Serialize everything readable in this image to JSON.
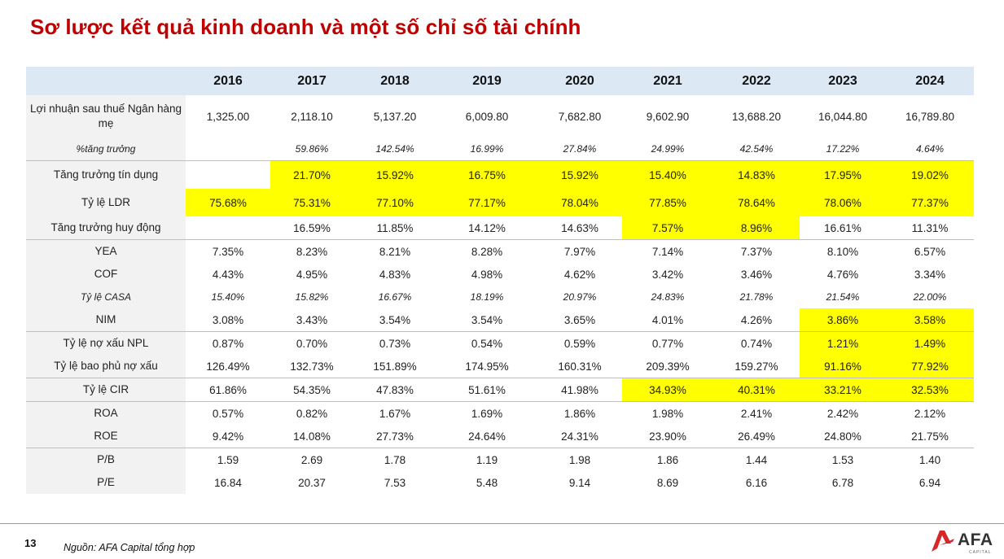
{
  "title": "Sơ lược kết quả kinh doanh và một số chỉ số tài chính",
  "years": [
    "2016",
    "2017",
    "2018",
    "2019",
    "2020",
    "2021",
    "2022",
    "2023",
    "2024"
  ],
  "rows": [
    {
      "label": "Lợi nhuận sau thuế Ngân hàng mẹ",
      "values": [
        "1,325.00",
        "2,118.10",
        "5,137.20",
        "6,009.80",
        "7,682.80",
        "9,602.90",
        "13,688.20",
        "16,044.80",
        "16,789.80"
      ]
    },
    {
      "label": "%tăng trưởng",
      "values": [
        "",
        "59.86%",
        "142.54%",
        "16.99%",
        "27.84%",
        "24.99%",
        "42.54%",
        "17.22%",
        "4.64%"
      ]
    },
    {
      "label": "Tăng trưởng tín dụng",
      "values": [
        "",
        "21.70%",
        "15.92%",
        "16.75%",
        "15.92%",
        "15.40%",
        "14.83%",
        "17.95%",
        "19.02%"
      ]
    },
    {
      "label": "Tỷ lệ LDR",
      "values": [
        "75.68%",
        "75.31%",
        "77.10%",
        "77.17%",
        "78.04%",
        "77.85%",
        "78.64%",
        "78.06%",
        "77.37%"
      ]
    },
    {
      "label": "Tăng trưởng huy động",
      "values": [
        "",
        "16.59%",
        "11.85%",
        "14.12%",
        "14.63%",
        "7.57%",
        "8.96%",
        "16.61%",
        "11.31%"
      ]
    },
    {
      "label": "YEA",
      "values": [
        "7.35%",
        "8.23%",
        "8.21%",
        "8.28%",
        "7.97%",
        "7.14%",
        "7.37%",
        "8.10%",
        "6.57%"
      ]
    },
    {
      "label": "COF",
      "values": [
        "4.43%",
        "4.95%",
        "4.83%",
        "4.98%",
        "4.62%",
        "3.42%",
        "3.46%",
        "4.76%",
        "3.34%"
      ]
    },
    {
      "label": "Tỷ lệ CASA",
      "values": [
        "15.40%",
        "15.82%",
        "16.67%",
        "18.19%",
        "20.97%",
        "24.83%",
        "21.78%",
        "21.54%",
        "22.00%"
      ]
    },
    {
      "label": "NIM",
      "values": [
        "3.08%",
        "3.43%",
        "3.54%",
        "3.54%",
        "3.65%",
        "4.01%",
        "4.26%",
        "3.86%",
        "3.58%"
      ]
    },
    {
      "label": "Tỷ lệ nợ xấu NPL",
      "values": [
        "0.87%",
        "0.70%",
        "0.73%",
        "0.54%",
        "0.59%",
        "0.77%",
        "0.74%",
        "1.21%",
        "1.49%"
      ]
    },
    {
      "label": "Tỷ lệ bao phủ nợ xấu",
      "values": [
        "126.49%",
        "132.73%",
        "151.89%",
        "174.95%",
        "160.31%",
        "209.39%",
        "159.27%",
        "91.16%",
        "77.92%"
      ]
    },
    {
      "label": "Tỷ lệ CIR",
      "values": [
        "61.86%",
        "54.35%",
        "47.83%",
        "51.61%",
        "41.98%",
        "34.93%",
        "40.31%",
        "33.21%",
        "32.53%"
      ]
    },
    {
      "label": "ROA",
      "values": [
        "0.57%",
        "0.82%",
        "1.67%",
        "1.69%",
        "1.86%",
        "1.98%",
        "2.41%",
        "2.42%",
        "2.12%"
      ]
    },
    {
      "label": "ROE",
      "values": [
        "9.42%",
        "14.08%",
        "27.73%",
        "24.64%",
        "24.31%",
        "23.90%",
        "26.49%",
        "24.80%",
        "21.75%"
      ]
    },
    {
      "label": "P/B",
      "values": [
        "1.59",
        "2.69",
        "1.78",
        "1.19",
        "1.98",
        "1.86",
        "1.44",
        "1.53",
        "1.40"
      ]
    },
    {
      "label": "P/E",
      "values": [
        "16.84",
        "20.37",
        "7.53",
        "5.48",
        "9.14",
        "8.69",
        "6.16",
        "6.78",
        "6.94"
      ]
    }
  ],
  "highlight_color": "#ffff00",
  "title_color": "#c00000",
  "page_number": "13",
  "source": "Nguồn: AFA Capital tổng hợp",
  "logo": {
    "name": "AFA",
    "subtitle": "CAPITAL"
  }
}
